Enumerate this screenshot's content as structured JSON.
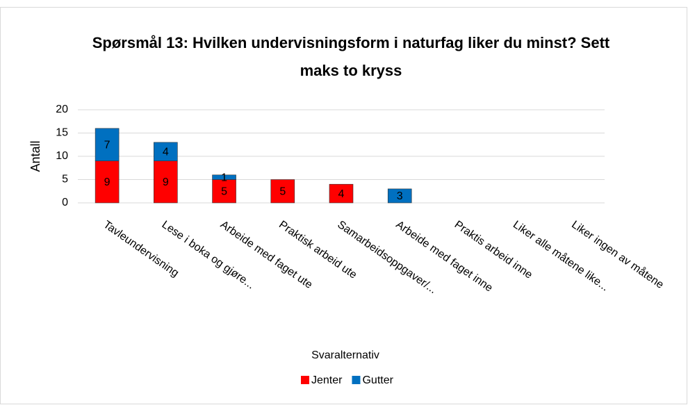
{
  "chart_data": {
    "type": "stacked_bar",
    "title": "Spørsmål 13: Hvilken undervisningsform i naturfag liker du minst? Sett maks to kryss",
    "y_label": "Antall",
    "legend_title": "Svaralternativ",
    "categories": [
      "Tavleundervisning",
      "Lese i boka og gjøre...",
      "Arbeide med faget ute",
      "Praktisk arbeid ute",
      "Samarbeidsoppgaver/...",
      "Arbeide med faget inne",
      "Praktis arbeid inne",
      "Liker alle måtene like...",
      "Liker ingen av måtene"
    ],
    "series": [
      {
        "name": "Jenter",
        "color": "#ff0000",
        "values": [
          9,
          9,
          5,
          5,
          4,
          0,
          0,
          0,
          0
        ]
      },
      {
        "name": "Gutter",
        "color": "#0070c0",
        "values": [
          7,
          4,
          1,
          0,
          0,
          3,
          0,
          0,
          0
        ]
      }
    ],
    "ylim": [
      0,
      20
    ],
    "yticks": [
      0,
      5,
      10,
      15,
      20
    ],
    "grid": true,
    "legend": "bottom"
  }
}
